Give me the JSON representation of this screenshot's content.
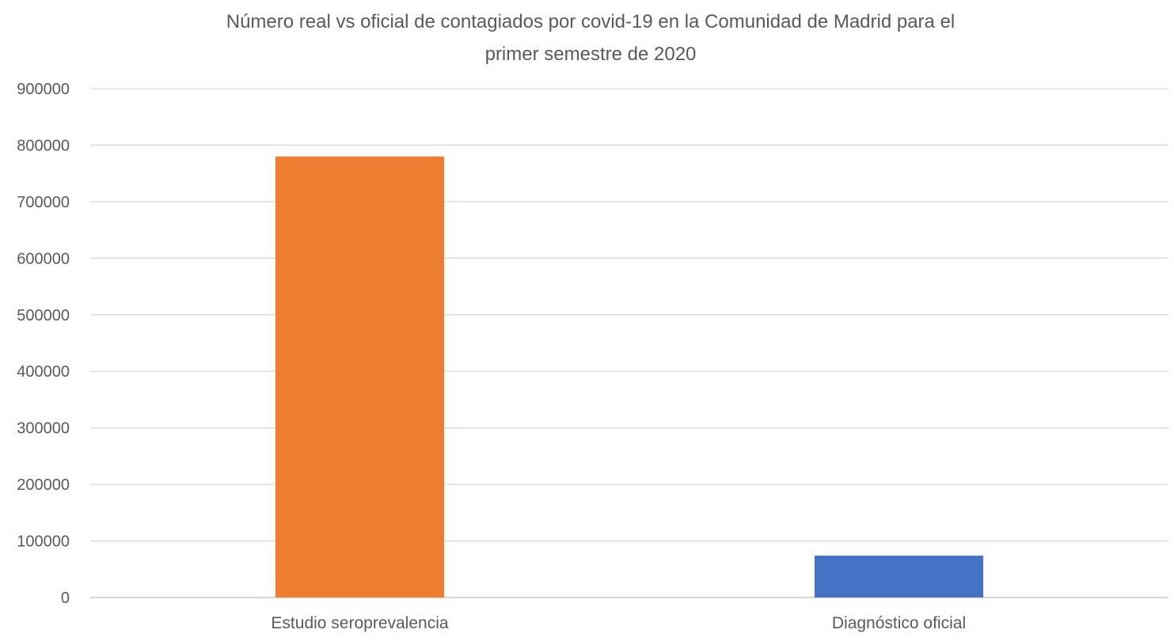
{
  "chart_data": {
    "type": "bar",
    "title_lines": [
      "Número real vs oficial de contagiados por covid-19 en la Comunidad de Madrid para el",
      "primer semestre de 2020"
    ],
    "categories": [
      "Estudio seroprevalencia",
      "Diagnóstico oficial"
    ],
    "values": [
      780000,
      74000
    ],
    "colors": [
      "#ED7D31",
      "#4472C4"
    ],
    "ylim": [
      0,
      900000
    ],
    "yticks": [
      "0",
      "100000",
      "200000",
      "300000",
      "400000",
      "500000",
      "600000",
      "700000",
      "800000",
      "900000"
    ],
    "grid": true,
    "legend": "none"
  }
}
